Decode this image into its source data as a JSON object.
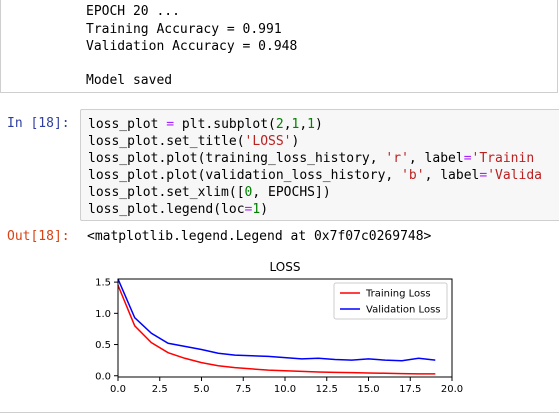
{
  "stream_output": {
    "lines": [
      "EPOCH 20 ...",
      "Training Accuracy = 0.991",
      "Validation Accuracy = 0.948",
      "",
      "Model saved"
    ]
  },
  "cell18": {
    "in_prompt": "In [18]:",
    "code_lines": [
      [
        {
          "t": "loss_plot "
        },
        {
          "t": "=",
          "c": "op"
        },
        {
          "t": " plt.subplot("
        },
        {
          "t": "2",
          "c": "num"
        },
        {
          "t": ","
        },
        {
          "t": "1",
          "c": "num"
        },
        {
          "t": ","
        },
        {
          "t": "1",
          "c": "num"
        },
        {
          "t": ")"
        }
      ],
      [
        {
          "t": "loss_plot.set_title("
        },
        {
          "t": "'LOSS'",
          "c": "str"
        },
        {
          "t": ")"
        }
      ],
      [
        {
          "t": "loss_plot.plot(training_loss_history, "
        },
        {
          "t": "'r'",
          "c": "str"
        },
        {
          "t": ", label"
        },
        {
          "t": "=",
          "c": "op"
        },
        {
          "t": "'Trainin",
          "c": "str"
        }
      ],
      [
        {
          "t": "loss_plot.plot(validation_loss_history, "
        },
        {
          "t": "'b'",
          "c": "str"
        },
        {
          "t": ", label"
        },
        {
          "t": "=",
          "c": "op"
        },
        {
          "t": "'Valida",
          "c": "str"
        }
      ],
      [
        {
          "t": "loss_plot.set_xlim(["
        },
        {
          "t": "0",
          "c": "num"
        },
        {
          "t": ", EPOCHS])"
        }
      ],
      [
        {
          "t": "loss_plot.legend(loc"
        },
        {
          "t": "=",
          "c": "op"
        },
        {
          "t": "1",
          "c": "num"
        },
        {
          "t": ")"
        }
      ]
    ],
    "out_prompt": "Out[18]:",
    "out_text": "<matplotlib.legend.Legend at 0x7f07c0269748>"
  },
  "chart_data": {
    "type": "line",
    "title": "LOSS",
    "xlabel": "",
    "ylabel": "",
    "xlim": [
      0,
      20
    ],
    "ylim": [
      -0.02,
      1.55
    ],
    "x_ticks": [
      "0.0",
      "2.5",
      "5.0",
      "7.5",
      "10.0",
      "12.5",
      "15.0",
      "17.5",
      "20.0"
    ],
    "y_ticks": [
      "0.0",
      "0.5",
      "1.0",
      "1.5"
    ],
    "grid": false,
    "legend_position": "top-right",
    "x": [
      0,
      1,
      2,
      3,
      4,
      5,
      6,
      7,
      8,
      9,
      10,
      11,
      12,
      13,
      14,
      15,
      16,
      17,
      18,
      19
    ],
    "series": [
      {
        "name": "Training Loss",
        "color": "#ff0000",
        "values": [
          1.45,
          0.8,
          0.53,
          0.37,
          0.28,
          0.21,
          0.16,
          0.13,
          0.11,
          0.09,
          0.08,
          0.07,
          0.06,
          0.055,
          0.05,
          0.045,
          0.04,
          0.035,
          0.03,
          0.03
        ]
      },
      {
        "name": "Validation Loss",
        "color": "#0000ff",
        "values": [
          1.55,
          0.93,
          0.68,
          0.52,
          0.47,
          0.42,
          0.36,
          0.33,
          0.32,
          0.31,
          0.29,
          0.27,
          0.28,
          0.26,
          0.25,
          0.27,
          0.25,
          0.24,
          0.28,
          0.25
        ]
      }
    ]
  }
}
